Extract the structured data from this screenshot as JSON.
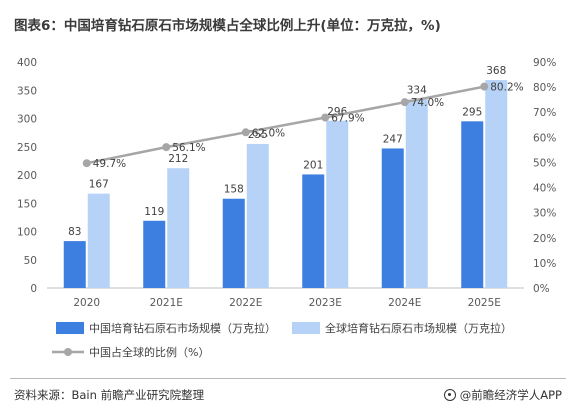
{
  "title": "图表6：中国培育钻石原石市场规模占全球比例上升(单位：万克拉，%)",
  "footer": {
    "source": "资料来源：Bain 前瞻产业研究院整理",
    "brand": "@前瞻经济学人APP"
  },
  "colors": {
    "china_bar": "#3d7fe0",
    "global_bar": "#b6d2f7",
    "ratio_line": "#a6a6a6"
  },
  "chart_data": {
    "type": "bar",
    "categories": [
      "2020",
      "2021E",
      "2022E",
      "2023E",
      "2024E",
      "2025E"
    ],
    "series": [
      {
        "name": "中国培育钻石原石市场规模（万克拉）",
        "type": "bar",
        "values": [
          83,
          119,
          158,
          201,
          247,
          295
        ]
      },
      {
        "name": "全球培育钻石原石市场规模（万克拉）",
        "type": "bar",
        "values": [
          167,
          212,
          255,
          296,
          334,
          368
        ]
      },
      {
        "name": "中国占全球的比例（%）",
        "type": "line",
        "axis": "right",
        "values": [
          49.7,
          56.1,
          62.0,
          67.9,
          74.0,
          80.2
        ],
        "labels": [
          "49.7%",
          "56.1%",
          "62.0%",
          "67.9%",
          "74.0%",
          "80.2%"
        ]
      }
    ],
    "ylim": [
      0,
      400
    ],
    "yticks": [
      "0",
      "50",
      "100",
      "150",
      "200",
      "250",
      "300",
      "350",
      "400"
    ],
    "y2lim": [
      0,
      90
    ],
    "y2ticks": [
      "0%",
      "10%",
      "20%",
      "30%",
      "40%",
      "50%",
      "60%",
      "70%",
      "80%",
      "90%"
    ],
    "legend_position": "bottom",
    "grid": false
  }
}
